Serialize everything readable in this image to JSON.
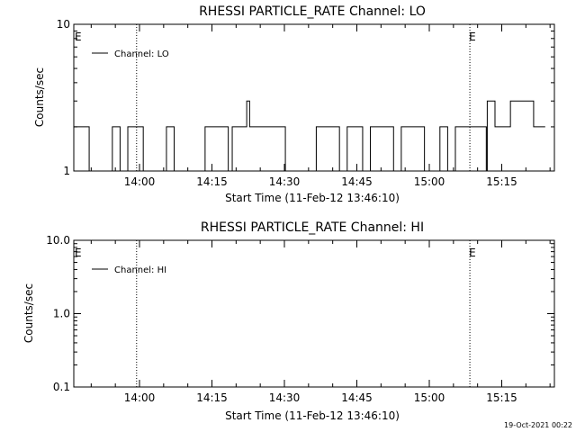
{
  "footer": {
    "timestamp": "19-Oct-2021 00:22"
  },
  "colors": {
    "line": "#000000",
    "background": "#ffffff"
  },
  "chart_data": [
    {
      "type": "line",
      "title": "RHESSI PARTICLE_RATE Channel: LO",
      "xlabel": "Start Time (11-Feb-12 13:46:10)",
      "ylabel": "Counts/sec",
      "yscale": "log",
      "ylim": [
        1,
        10
      ],
      "y_ticks": [
        1,
        10
      ],
      "y_tick_labels": [
        "1",
        "10"
      ],
      "xlim_minutes": [
        13.77,
        15.6
      ],
      "x_ticks": [
        "14:00",
        "14:15",
        "14:30",
        "14:45",
        "15:00",
        "15:15"
      ],
      "x_tick_values_hours": [
        14.0,
        14.25,
        14.5,
        14.75,
        15.0,
        15.25
      ],
      "legend": {
        "position": "top-left",
        "entries": [
          "Channel: LO"
        ]
      },
      "vlines_hours": [
        13.99,
        15.14,
        15.52
      ],
      "event_markers": [
        {
          "label": "E",
          "x_hours": 13.775
        },
        {
          "label": "E",
          "x_hours": 15.14
        }
      ],
      "series": [
        {
          "name": "Channel: LO",
          "description_levels": [
            1,
            2,
            3
          ],
          "segments": [
            {
              "x_start": 13.773,
              "x_end": 14.32,
              "pattern": "toggle_1_2"
            },
            {
              "x_start": 14.32,
              "x_end": 14.37,
              "value": 2
            },
            {
              "x_start": 14.37,
              "x_end": 14.38,
              "value": 3
            },
            {
              "x_start": 14.38,
              "x_end": 14.45,
              "value": 2
            },
            {
              "x_start": 14.45,
              "x_end": 15.2,
              "pattern": "toggle_1_2"
            },
            {
              "x_start": 15.2,
              "x_end": 15.36,
              "pattern": "toggle_2_3"
            },
            {
              "x_start": 15.36,
              "x_end": 15.4,
              "value": 2
            }
          ]
        }
      ]
    },
    {
      "type": "line",
      "title": "RHESSI PARTICLE_RATE Channel: HI",
      "xlabel": "Start Time (11-Feb-12 13:46:10)",
      "ylabel": "Counts/sec",
      "yscale": "log",
      "ylim": [
        0.1,
        10
      ],
      "y_ticks": [
        0.1,
        1.0,
        10.0
      ],
      "y_tick_labels": [
        "0.1",
        "1.0",
        "10.0"
      ],
      "x_ticks": [
        "14:00",
        "14:15",
        "14:30",
        "14:45",
        "15:00",
        "15:15"
      ],
      "x_tick_values_hours": [
        14.0,
        14.25,
        14.5,
        14.75,
        15.0,
        15.25
      ],
      "legend": {
        "position": "top-left",
        "entries": [
          "Channel: HI"
        ]
      },
      "vlines_hours": [
        13.99,
        15.14,
        15.52
      ],
      "event_markers": [
        {
          "label": "E",
          "x_hours": 13.775
        },
        {
          "label": "E",
          "x_hours": 15.14
        }
      ],
      "series": [
        {
          "name": "Channel: HI",
          "values": []
        }
      ]
    }
  ]
}
